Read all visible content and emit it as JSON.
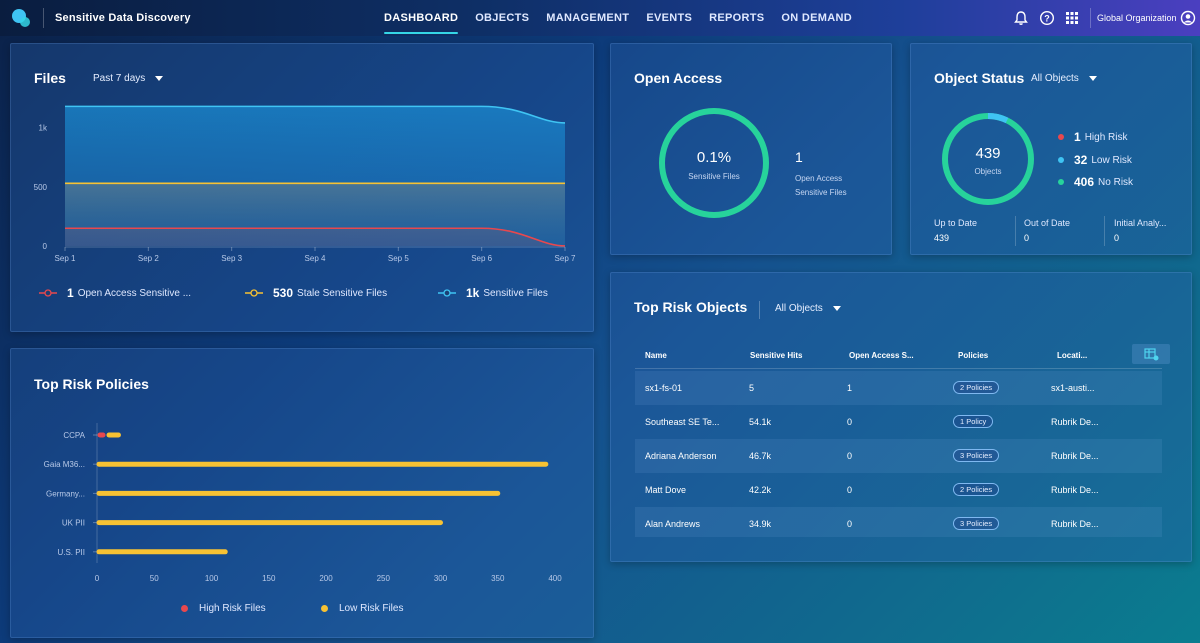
{
  "app": {
    "title": "Sensitive Data Discovery",
    "org": "Global Organization"
  },
  "nav": [
    "DASHBOARD",
    "OBJECTS",
    "MANAGEMENT",
    "EVENTS",
    "REPORTS",
    "ON DEMAND"
  ],
  "icons": {
    "logo": "app-logo-icon",
    "bell": "bell-icon",
    "help": "help-icon",
    "apps": "app-grid-icon",
    "user": "user-icon",
    "table_settings": "table-settings-icon"
  },
  "colors": {
    "accent": "#35d6e6",
    "red": "#e8484e",
    "yellow": "#f7c233",
    "blue": "#3fc4f3",
    "green": "#27d39b"
  },
  "files": {
    "title": "Files",
    "range": "Past 7 days",
    "legend": [
      {
        "value": "1",
        "label": "Open Access Sensitive ..."
      },
      {
        "value": "530",
        "label": "Stale Sensitive Files"
      },
      {
        "value": "1k",
        "label": "Sensitive Files"
      }
    ]
  },
  "open_access": {
    "title": "Open Access",
    "percent": "0.1%",
    "percent_label": "Sensitive Files",
    "count": "1",
    "count_label_1": "Open Access",
    "count_label_2": "Sensitive Files"
  },
  "object_status": {
    "title": "Object Status",
    "filter": "All Objects",
    "total": "439",
    "total_label": "Objects",
    "legend": [
      {
        "value": "1",
        "label": "High Risk"
      },
      {
        "value": "32",
        "label": "Low Risk"
      },
      {
        "value": "406",
        "label": "No Risk"
      }
    ],
    "stats": [
      {
        "label": "Up to Date",
        "value": "439"
      },
      {
        "label": "Out of Date",
        "value": "0"
      },
      {
        "label": "Initial Analy...",
        "value": "0"
      }
    ]
  },
  "top_risk_objects": {
    "title": "Top Risk Objects",
    "filter": "All Objects",
    "columns": [
      "Name",
      "Sensitive Hits",
      "Open Access S...",
      "Policies",
      "Locati..."
    ],
    "rows": [
      {
        "name": "sx1-fs-01",
        "hits": "5",
        "open": "1",
        "policies": "2 Policies",
        "location": "sx1-austi..."
      },
      {
        "name": "Southeast SE Te...",
        "hits": "54.1k",
        "open": "0",
        "policies": "1 Policy",
        "location": "Rubrik De..."
      },
      {
        "name": "Adriana Anderson",
        "hits": "46.7k",
        "open": "0",
        "policies": "3 Policies",
        "location": "Rubrik De..."
      },
      {
        "name": "Matt Dove",
        "hits": "42.2k",
        "open": "0",
        "policies": "2 Policies",
        "location": "Rubrik De..."
      },
      {
        "name": "Alan Andrews",
        "hits": "34.9k",
        "open": "0",
        "policies": "3 Policies",
        "location": "Rubrik De..."
      }
    ]
  },
  "top_risk_policies": {
    "title": "Top Risk Policies"
  },
  "chart_data": [
    {
      "type": "area",
      "title": "Files",
      "x": [
        "Sep 1",
        "Sep 2",
        "Sep 3",
        "Sep 4",
        "Sep 5",
        "Sep 6",
        "Sep 7"
      ],
      "yticks": [
        "0",
        "500",
        "1k"
      ],
      "ylim": [
        0,
        1200
      ],
      "series": [
        {
          "name": "Sensitive Files",
          "values": [
            1180,
            1180,
            1180,
            1180,
            1180,
            1180,
            1040
          ]
        },
        {
          "name": "Stale Sensitive Files",
          "values": [
            530,
            530,
            530,
            530,
            530,
            530,
            530
          ]
        },
        {
          "name": "Open Access Sensitive Files",
          "values": [
            150,
            150,
            150,
            150,
            150,
            150,
            1
          ]
        }
      ]
    },
    {
      "type": "bar",
      "title": "Top Risk Policies",
      "orientation": "horizontal",
      "categories": [
        "CCPA",
        "Gaia M36...",
        "Germany...",
        "UK PII",
        "U.S. PII"
      ],
      "xticks": [
        "0",
        "50",
        "100",
        "150",
        "200",
        "250",
        "300",
        "350",
        "400"
      ],
      "xlim": [
        0,
        400
      ],
      "legend": [
        "High Risk Files",
        "Low Risk Files"
      ],
      "series": [
        {
          "name": "High Risk Files",
          "values": [
            1,
            0,
            0,
            0,
            0
          ]
        },
        {
          "name": "Low Risk Files",
          "values": [
            10,
            392,
            350,
            300,
            112
          ]
        }
      ]
    }
  ]
}
